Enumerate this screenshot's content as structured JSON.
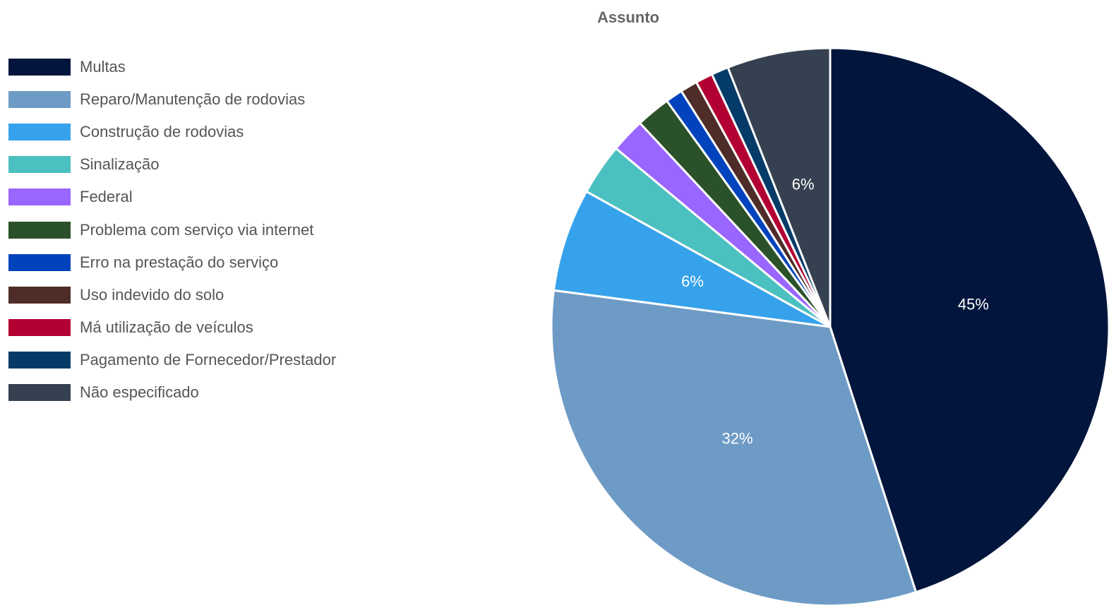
{
  "chart_data": {
    "type": "pie",
    "title": "Assunto",
    "legend_position": "left",
    "slices": [
      {
        "label": "Multas",
        "value": 45.2,
        "display": "45%",
        "color": "#01153d"
      },
      {
        "label": "Reparo/Manutenção de rodovias",
        "value": 32.2,
        "display": "32%",
        "color": "#6e9bc5"
      },
      {
        "label": "Construção de rodovias",
        "value": 6.0,
        "display": "6%",
        "color": "#36a2eb"
      },
      {
        "label": "Sinalização",
        "value": 3.0,
        "display": "",
        "color": "#4bc0c0"
      },
      {
        "label": "Federal",
        "value": 2.0,
        "display": "",
        "color": "#9966ff"
      },
      {
        "label": "Problema com serviço via internet",
        "value": 2.0,
        "display": "",
        "color": "#2a5129"
      },
      {
        "label": "Erro na prestação do serviço",
        "value": 1.0,
        "display": "",
        "color": "#0043bd"
      },
      {
        "label": "Uso indevido do solo",
        "value": 1.0,
        "display": "",
        "color": "#4e2c27"
      },
      {
        "label": "Má utilização de veículos",
        "value": 1.0,
        "display": "",
        "color": "#b30032"
      },
      {
        "label": "Pagamento de Fornecedor/Prestador",
        "value": 1.0,
        "display": "",
        "color": "#053b69"
      },
      {
        "label": "Não especificado",
        "value": 6.0,
        "display": "6%",
        "color": "#354150"
      }
    ]
  }
}
